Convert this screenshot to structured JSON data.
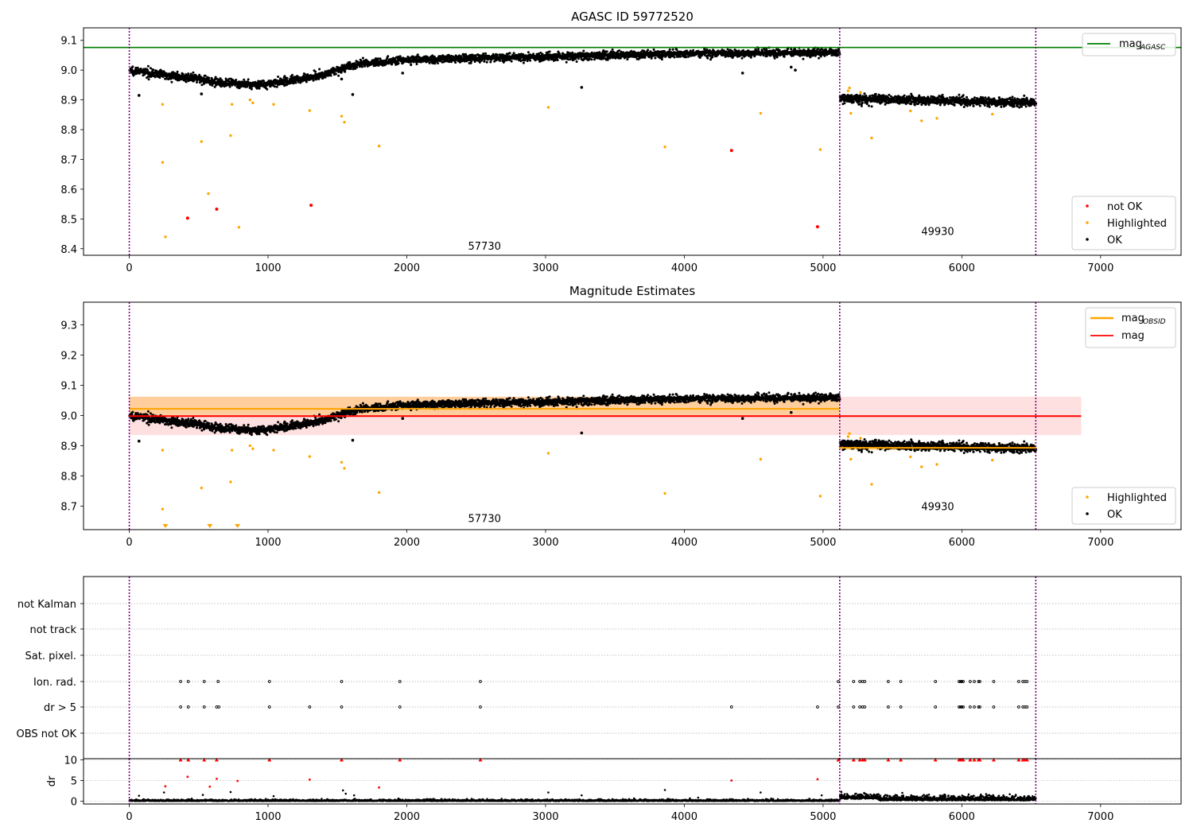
{
  "figure": {
    "colors": {
      "ok": "#000000",
      "highlighted": "#ffa500",
      "not_ok": "#ff0000",
      "agasc_line": "#008000",
      "obs_line": "#ffa500",
      "obs_band": "#ffa500",
      "mag_line": "#ff0000",
      "mag_band": "#ff0000",
      "obs_boundary": "#800080",
      "grid": "#b0b0b0"
    }
  },
  "chart_data": [
    {
      "id": "agasc",
      "type": "scatter",
      "title": "AGASC ID 59772520",
      "xlim": [
        -330,
        7580
      ],
      "ylim": [
        8.378,
        9.142
      ],
      "xticks": [
        0,
        1000,
        2000,
        3000,
        4000,
        5000,
        6000,
        7000
      ],
      "yticks": [
        8.4,
        8.5,
        8.6,
        8.7,
        8.8,
        8.9,
        9.0,
        9.1
      ],
      "ytick_labels": [
        "8.4",
        "8.5",
        "8.6",
        "8.7",
        "8.8",
        "8.9",
        "9.0",
        "9.1"
      ],
      "obs_boundaries": [
        0,
        5120,
        6533
      ],
      "obsids": [
        {
          "label": "57730",
          "x": 2560,
          "y": 8.41
        },
        {
          "label": "49930",
          "x": 5826,
          "y": 8.46
        }
      ],
      "hlines": [
        {
          "name": "mag_AGASC",
          "y": 9.076,
          "x_range": [
            -330,
            7580
          ],
          "color": "#008000"
        }
      ],
      "ok_trend": [
        [
          0,
          9.0
        ],
        [
          500,
          8.97
        ],
        [
          700,
          8.955
        ],
        [
          900,
          8.95
        ],
        [
          1100,
          8.96
        ],
        [
          1400,
          8.985
        ],
        [
          1500,
          9.0
        ],
        [
          1650,
          9.02
        ],
        [
          2000,
          9.035
        ],
        [
          3000,
          9.045
        ],
        [
          4000,
          9.055
        ],
        [
          5120,
          9.06
        ]
      ],
      "ok_trend_2": [
        [
          5120,
          8.905
        ],
        [
          6533,
          8.89
        ]
      ],
      "ok_outliers": [
        [
          70,
          8.915
        ],
        [
          520,
          8.92
        ],
        [
          1610,
          8.918
        ],
        [
          1530,
          8.97
        ],
        [
          1970,
          8.99
        ],
        [
          3260,
          8.942
        ],
        [
          4420,
          8.99
        ],
        [
          4770,
          9.01
        ],
        [
          4800,
          9.0
        ]
      ],
      "highlighted": [
        [
          240,
          8.885
        ],
        [
          240,
          8.69
        ],
        [
          260,
          8.44
        ],
        [
          520,
          8.76
        ],
        [
          570,
          8.585
        ],
        [
          730,
          8.78
        ],
        [
          740,
          8.885
        ],
        [
          790,
          8.472
        ],
        [
          870,
          8.9
        ],
        [
          890,
          8.89
        ],
        [
          1040,
          8.885
        ],
        [
          1300,
          8.864
        ],
        [
          1530,
          8.845
        ],
        [
          1550,
          8.825
        ],
        [
          1800,
          8.745
        ],
        [
          3020,
          8.875
        ],
        [
          3860,
          8.742
        ],
        [
          4550,
          8.855
        ],
        [
          4980,
          8.733
        ],
        [
          5180,
          8.93
        ],
        [
          5190,
          8.94
        ],
        [
          5200,
          8.855
        ],
        [
          5270,
          8.925
        ],
        [
          5350,
          8.772
        ],
        [
          5630,
          8.863
        ],
        [
          5710,
          8.83
        ],
        [
          5820,
          8.838
        ],
        [
          6220,
          8.852
        ]
      ],
      "not_ok": [
        [
          420,
          8.503
        ],
        [
          630,
          8.533
        ],
        [
          1310,
          8.546
        ],
        [
          4340,
          8.73
        ],
        [
          4960,
          8.474
        ]
      ],
      "legend": {
        "placement": "top-right",
        "entries": [
          {
            "marker": "line",
            "label": "mag",
            "sub": "AGASC"
          }
        ]
      },
      "legend2": {
        "placement": "bottom-right",
        "entries": [
          {
            "marker": "dot",
            "label": "not OK",
            "color": "#ff0000"
          },
          {
            "marker": "dot",
            "label": "Highlighted",
            "color": "#ffa500"
          },
          {
            "marker": "dot",
            "label": "OK",
            "color": "#000000"
          }
        ]
      }
    },
    {
      "id": "estimates",
      "type": "scatter",
      "title": "Magnitude Estimates",
      "xlim": [
        -330,
        7580
      ],
      "ylim": [
        8.622,
        9.375
      ],
      "xticks": [
        0,
        1000,
        2000,
        3000,
        4000,
        5000,
        6000,
        7000
      ],
      "yticks": [
        8.7,
        8.8,
        8.9,
        9.0,
        9.1,
        9.2,
        9.3
      ],
      "ytick_labels": [
        "8.7",
        "8.8",
        "8.9",
        "9.0",
        "9.1",
        "9.2",
        "9.3"
      ],
      "obs_boundaries": [
        0,
        5120,
        6533
      ],
      "obsids": [
        {
          "label": "57730",
          "x": 2560,
          "y": 8.66
        },
        {
          "label": "49930",
          "x": 5826,
          "y": 8.7
        }
      ],
      "bands": [
        {
          "name": "mag",
          "x_range": [
            0,
            6860
          ],
          "y_range": [
            8.935,
            9.062
          ],
          "color": "#ff0000",
          "opacity": 0.12
        },
        {
          "name": "mag_OBSID 57730",
          "x_range": [
            0,
            5120
          ],
          "y_range": [
            9.0,
            9.062
          ],
          "color": "#ffa500",
          "opacity": 0.3
        },
        {
          "name": "mag_OBSID 49930",
          "x_range": [
            5120,
            6533
          ],
          "y_range": [
            8.885,
            8.905
          ],
          "color": "#ffa500",
          "opacity": 0.3
        }
      ],
      "hlines": [
        {
          "name": "mag",
          "y": 8.998,
          "x_range": [
            0,
            6860
          ],
          "color": "#ff0000"
        },
        {
          "name": "mag_OBSID 57730",
          "y": 9.022,
          "x_range": [
            0,
            5120
          ],
          "color": "#ffa500"
        },
        {
          "name": "mag_OBSID 49930",
          "y": 8.893,
          "x_range": [
            5120,
            6533
          ],
          "color": "#ffa500"
        }
      ],
      "ok_trend": [
        [
          0,
          9.0
        ],
        [
          500,
          8.97
        ],
        [
          700,
          8.955
        ],
        [
          900,
          8.95
        ],
        [
          1100,
          8.96
        ],
        [
          1400,
          8.985
        ],
        [
          1500,
          9.0
        ],
        [
          1650,
          9.02
        ],
        [
          2000,
          9.035
        ],
        [
          3000,
          9.045
        ],
        [
          4000,
          9.055
        ],
        [
          5120,
          9.06
        ]
      ],
      "ok_trend_2": [
        [
          5120,
          8.905
        ],
        [
          6533,
          8.89
        ]
      ],
      "ok_outliers": [
        [
          70,
          8.915
        ],
        [
          1610,
          8.918
        ],
        [
          1970,
          8.99
        ],
        [
          3260,
          8.942
        ],
        [
          4420,
          8.99
        ],
        [
          4770,
          9.01
        ]
      ],
      "highlighted": [
        [
          240,
          8.885
        ],
        [
          240,
          8.69
        ],
        [
          520,
          8.76
        ],
        [
          730,
          8.78
        ],
        [
          740,
          8.885
        ],
        [
          870,
          8.9
        ],
        [
          890,
          8.89
        ],
        [
          1040,
          8.885
        ],
        [
          1300,
          8.864
        ],
        [
          1530,
          8.845
        ],
        [
          1550,
          8.825
        ],
        [
          1800,
          8.745
        ],
        [
          3020,
          8.875
        ],
        [
          3860,
          8.742
        ],
        [
          4550,
          8.855
        ],
        [
          4980,
          8.733
        ],
        [
          5180,
          8.93
        ],
        [
          5190,
          8.94
        ],
        [
          5200,
          8.855
        ],
        [
          5270,
          8.925
        ],
        [
          5350,
          8.772
        ],
        [
          5630,
          8.863
        ],
        [
          5710,
          8.83
        ],
        [
          5820,
          8.838
        ],
        [
          6220,
          8.852
        ]
      ],
      "off_scale_below": [
        260,
        580,
        780
      ],
      "legend": {
        "placement": "top-right",
        "entries": [
          {
            "marker": "line",
            "label": "mag",
            "sub": "OBSID",
            "color": "#ffa500"
          },
          {
            "marker": "line",
            "label": "mag",
            "color": "#ff0000"
          }
        ]
      },
      "legend2": {
        "placement": "bottom-right",
        "entries": [
          {
            "marker": "dot",
            "label": "Highlighted",
            "color": "#ffa500"
          },
          {
            "marker": "dot",
            "label": "OK",
            "color": "#000000"
          }
        ]
      }
    },
    {
      "id": "flags",
      "type": "scatter",
      "xlim": [
        -330,
        7580
      ],
      "xticks": [
        0,
        1000,
        2000,
        3000,
        4000,
        5000,
        6000,
        7000
      ],
      "obs_boundaries": [
        0,
        5120,
        6533
      ],
      "flag_rows": [
        "not Kalman",
        "not track",
        "Sat. pixel.",
        "Ion. rad.",
        "dr > 5",
        "OBS not OK"
      ],
      "flag_points": {
        "Ion. rad.": [
          370,
          425,
          540,
          640,
          1010,
          1530,
          1950,
          2530,
          5110,
          5220,
          5265,
          5285,
          5300,
          5470,
          5560,
          5810,
          5980,
          5990,
          6000,
          6010,
          6060,
          6090,
          6120,
          6130,
          6230,
          6410,
          6440,
          6455,
          6470
        ],
        "dr > 5": [
          370,
          425,
          540,
          630,
          645,
          1010,
          1300,
          1530,
          1950,
          2530,
          4340,
          4960,
          5110,
          5220,
          5265,
          5285,
          5300,
          5470,
          5560,
          5810,
          5980,
          5990,
          6000,
          6010,
          6060,
          6090,
          6120,
          6130,
          6230,
          6410,
          6440,
          6455,
          6470
        ]
      }
    },
    {
      "id": "dr",
      "type": "scatter",
      "ylabel": "dr",
      "xlim": [
        -330,
        7580
      ],
      "ylim": [
        -0.7,
        10.3
      ],
      "yticks": [
        0,
        5,
        10
      ],
      "ytick_labels": [
        "0",
        "5",
        "10"
      ],
      "xticks": [
        0,
        1000,
        2000,
        3000,
        4000,
        5000,
        6000,
        7000
      ],
      "xtick_labels": [
        "0",
        "1000",
        "2000",
        "3000",
        "4000",
        "5000",
        "6000",
        "7000"
      ],
      "obs_boundaries": [
        0,
        5120,
        6533
      ],
      "dr_clipped": [
        370,
        425,
        540,
        630,
        1010,
        1530,
        1950,
        2530,
        5110,
        5220,
        5265,
        5285,
        5300,
        5470,
        5560,
        5810,
        5980,
        5990,
        6000,
        6010,
        6060,
        6090,
        6120,
        6130,
        6230,
        6410,
        6440,
        6455,
        6470
      ],
      "dr_red": [
        [
          260,
          3.6
        ],
        [
          420,
          5.9
        ],
        [
          580,
          3.5
        ],
        [
          630,
          5.4
        ],
        [
          780,
          4.9
        ],
        [
          1300,
          5.2
        ],
        [
          1800,
          3.3
        ],
        [
          4340,
          5.0
        ],
        [
          4960,
          5.3
        ]
      ],
      "dr_black": [
        [
          70,
          1.3
        ],
        [
          250,
          2.1
        ],
        [
          530,
          1.5
        ],
        [
          730,
          2.2
        ],
        [
          1040,
          1.2
        ],
        [
          1540,
          2.6
        ],
        [
          1560,
          1.8
        ],
        [
          1620,
          1.4
        ],
        [
          3020,
          2.1
        ],
        [
          3260,
          1.4
        ],
        [
          3860,
          2.7
        ],
        [
          4550,
          2.1
        ],
        [
          4990,
          1.4
        ]
      ]
    }
  ]
}
